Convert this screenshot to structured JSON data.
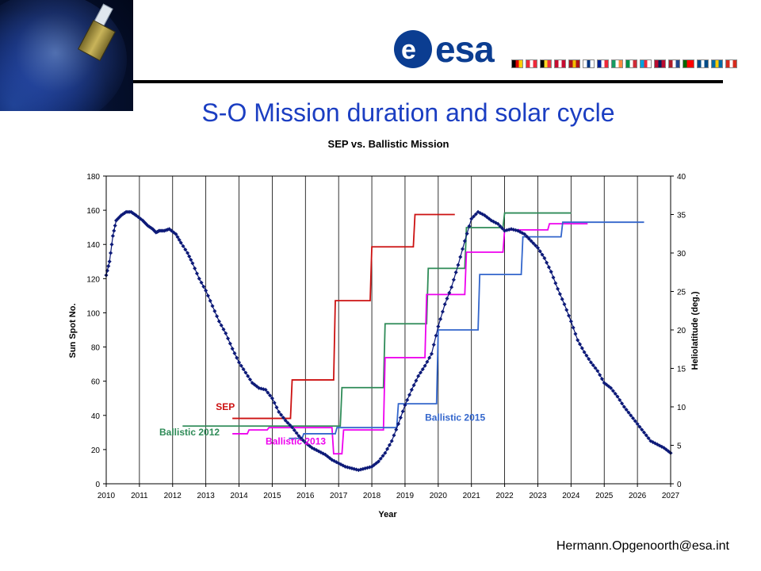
{
  "slide": {
    "title": "S-O Mission duration and solar cycle",
    "logo_text": "esa",
    "footer": "Hermann.Opgenoorth@esa.int",
    "flag_colors": [
      [
        "#000000",
        "#dd0000",
        "#ffce00"
      ],
      [
        "#ed2939",
        "#ffffff",
        "#ed2939"
      ],
      [
        "#000000",
        "#fdda24",
        "#ef3340"
      ],
      [
        "#c60c30",
        "#ffffff",
        "#c60c30"
      ],
      [
        "#aa151b",
        "#f1bf00",
        "#aa151b"
      ],
      [
        "#ffffff",
        "#003580",
        "#ffffff"
      ],
      [
        "#002395",
        "#ffffff",
        "#ed2939"
      ],
      [
        "#169b62",
        "#ffffff",
        "#ff883e"
      ],
      [
        "#009246",
        "#ffffff",
        "#ce2b37"
      ],
      [
        "#00a1de",
        "#ed2939",
        "#ffffff"
      ],
      [
        "#ba0c2f",
        "#00205b",
        "#ba0c2f"
      ],
      [
        "#ae1c28",
        "#ffffff",
        "#21468b"
      ],
      [
        "#006600",
        "#ff0000",
        "#ff0000"
      ],
      [
        "#004b87",
        "#ffffff",
        "#004b87"
      ],
      [
        "#006aa7",
        "#fecc00",
        "#006aa7"
      ],
      [
        "#d52b1e",
        "#ffffff",
        "#d52b1e"
      ]
    ]
  },
  "chart_data": {
    "type": "line",
    "title": "SEP vs. Ballistic Mission",
    "xlabel": "Year",
    "ylabel": "Sun Spot No.",
    "y2label": "Heliolatitude (deg.)",
    "xlim": [
      2010,
      2027
    ],
    "ylim": [
      0,
      180
    ],
    "y2lim": [
      0,
      40
    ],
    "x_ticks": [
      "2010",
      "2011",
      "2012",
      "2013",
      "2014",
      "2015",
      "2016",
      "2017",
      "2018",
      "2019",
      "2020",
      "2021",
      "2022",
      "2023",
      "2024",
      "2025",
      "2026",
      "2027"
    ],
    "y_ticks": [
      "0",
      "20",
      "40",
      "60",
      "80",
      "100",
      "120",
      "140",
      "160",
      "180"
    ],
    "y2_ticks": [
      "0",
      "5",
      "10",
      "15",
      "20",
      "25",
      "30",
      "35",
      "40"
    ],
    "grid": "vertical at each year",
    "sunspot": {
      "color": "#0d1a78",
      "points": [
        [
          2010.0,
          122
        ],
        [
          2010.1,
          130
        ],
        [
          2010.2,
          145
        ],
        [
          2010.3,
          154
        ],
        [
          2010.45,
          157
        ],
        [
          2010.6,
          159
        ],
        [
          2010.75,
          159
        ],
        [
          2010.9,
          157
        ],
        [
          2011.1,
          154
        ],
        [
          2011.25,
          151
        ],
        [
          2011.4,
          149
        ],
        [
          2011.5,
          147
        ],
        [
          2011.6,
          148
        ],
        [
          2011.75,
          148
        ],
        [
          2011.9,
          149
        ],
        [
          2012.1,
          146
        ],
        [
          2012.25,
          141
        ],
        [
          2012.45,
          135
        ],
        [
          2012.6,
          129
        ],
        [
          2012.8,
          120
        ],
        [
          2013.0,
          113
        ],
        [
          2013.2,
          104
        ],
        [
          2013.4,
          95
        ],
        [
          2013.6,
          88
        ],
        [
          2013.8,
          79
        ],
        [
          2014.0,
          71
        ],
        [
          2014.2,
          65
        ],
        [
          2014.4,
          59
        ],
        [
          2014.6,
          56
        ],
        [
          2014.8,
          55
        ],
        [
          2015.0,
          50
        ],
        [
          2015.2,
          42
        ],
        [
          2015.4,
          37
        ],
        [
          2015.6,
          33
        ],
        [
          2015.8,
          28
        ],
        [
          2016.0,
          24
        ],
        [
          2016.2,
          21
        ],
        [
          2016.4,
          19
        ],
        [
          2016.6,
          17
        ],
        [
          2016.8,
          14
        ],
        [
          2017.0,
          12
        ],
        [
          2017.2,
          10
        ],
        [
          2017.4,
          9
        ],
        [
          2017.6,
          8
        ],
        [
          2017.8,
          9
        ],
        [
          2018.0,
          10
        ],
        [
          2018.2,
          13
        ],
        [
          2018.4,
          18
        ],
        [
          2018.6,
          25
        ],
        [
          2018.8,
          35
        ],
        [
          2019.0,
          46
        ],
        [
          2019.2,
          55
        ],
        [
          2019.4,
          63
        ],
        [
          2019.6,
          69
        ],
        [
          2019.8,
          76
        ],
        [
          2020.0,
          92
        ],
        [
          2020.2,
          105
        ],
        [
          2020.4,
          115
        ],
        [
          2020.6,
          128
        ],
        [
          2020.8,
          142
        ],
        [
          2021.0,
          155
        ],
        [
          2021.2,
          159
        ],
        [
          2021.4,
          157
        ],
        [
          2021.6,
          154
        ],
        [
          2021.8,
          152
        ],
        [
          2022.0,
          148
        ],
        [
          2022.2,
          149
        ],
        [
          2022.4,
          148
        ],
        [
          2022.6,
          146
        ],
        [
          2022.8,
          142
        ],
        [
          2023.0,
          138
        ],
        [
          2023.2,
          132
        ],
        [
          2023.4,
          124
        ],
        [
          2023.6,
          114
        ],
        [
          2023.8,
          105
        ],
        [
          2024.0,
          95
        ],
        [
          2024.2,
          84
        ],
        [
          2024.4,
          77
        ],
        [
          2024.6,
          71
        ],
        [
          2024.8,
          66
        ],
        [
          2025.0,
          59
        ],
        [
          2025.2,
          56
        ],
        [
          2025.4,
          51
        ],
        [
          2025.6,
          45
        ],
        [
          2025.8,
          40
        ],
        [
          2026.0,
          35
        ],
        [
          2026.2,
          30
        ],
        [
          2026.4,
          25
        ],
        [
          2026.6,
          23
        ],
        [
          2026.8,
          21
        ],
        [
          2027.0,
          18
        ]
      ]
    },
    "series": [
      {
        "name": "SEP",
        "color": "#cc1111",
        "axis": "right",
        "points": [
          [
            2013.8,
            8.5
          ],
          [
            2015.55,
            8.5
          ],
          [
            2015.6,
            13.5
          ],
          [
            2016.85,
            13.5
          ],
          [
            2016.9,
            23.8
          ],
          [
            2017.95,
            23.8
          ],
          [
            2018.0,
            30.8
          ],
          [
            2019.25,
            30.8
          ],
          [
            2019.3,
            35
          ],
          [
            2020.5,
            35
          ]
        ]
      },
      {
        "name": "Ballistic 2012",
        "color": "#2e8b57",
        "axis": "right",
        "points": [
          [
            2012.3,
            7.5
          ],
          [
            2017.05,
            7.5
          ],
          [
            2017.1,
            12.5
          ],
          [
            2018.35,
            12.5
          ],
          [
            2018.4,
            20.8
          ],
          [
            2019.65,
            20.8
          ],
          [
            2019.7,
            28
          ],
          [
            2020.8,
            28
          ],
          [
            2020.85,
            33.3
          ],
          [
            2021.95,
            33.3
          ],
          [
            2022.0,
            35.2
          ],
          [
            2024.0,
            35.2
          ]
        ]
      },
      {
        "name": "Ballistic 2013",
        "color": "#ee00ee",
        "axis": "right",
        "points": [
          [
            2013.8,
            6.5
          ],
          [
            2014.25,
            6.5
          ],
          [
            2014.3,
            7.0
          ],
          [
            2014.85,
            7.0
          ],
          [
            2014.9,
            7.3
          ],
          [
            2016.8,
            7.3
          ],
          [
            2016.85,
            3.9
          ],
          [
            2017.1,
            3.9
          ],
          [
            2017.15,
            7.0
          ],
          [
            2018.35,
            7.0
          ],
          [
            2018.4,
            16.4
          ],
          [
            2019.6,
            16.4
          ],
          [
            2019.65,
            24.6
          ],
          [
            2020.8,
            24.6
          ],
          [
            2020.85,
            30.1
          ],
          [
            2021.95,
            30.1
          ],
          [
            2022.0,
            33
          ],
          [
            2023.3,
            33
          ],
          [
            2023.35,
            33.8
          ],
          [
            2024.5,
            33.8
          ]
        ]
      },
      {
        "name": "Ballistic 2015",
        "color": "#3366cc",
        "axis": "right",
        "points": [
          [
            2015.5,
            5.9
          ],
          [
            2015.9,
            5.9
          ],
          [
            2015.95,
            6.5
          ],
          [
            2016.9,
            6.5
          ],
          [
            2016.95,
            7.3
          ],
          [
            2018.75,
            7.3
          ],
          [
            2018.8,
            10.4
          ],
          [
            2019.95,
            10.4
          ],
          [
            2020.0,
            20.0
          ],
          [
            2021.2,
            20.0
          ],
          [
            2021.25,
            27.2
          ],
          [
            2022.5,
            27.2
          ],
          [
            2022.55,
            32.1
          ],
          [
            2023.7,
            32.1
          ],
          [
            2023.75,
            34
          ],
          [
            2026.2,
            34
          ]
        ]
      }
    ],
    "labels": [
      {
        "text": "SEP",
        "series": "SEP",
        "x": 2013.3,
        "y": 9.6
      },
      {
        "text": "Ballistic 2012",
        "series": "Ballistic 2012",
        "x": 2011.6,
        "y": 6.3
      },
      {
        "text": "Ballistic 2013",
        "series": "Ballistic 2013",
        "x": 2014.8,
        "y": 5.1
      },
      {
        "text": "Ballistic 2015",
        "series": "Ballistic 2015",
        "x": 2019.6,
        "y": 8.2
      }
    ]
  }
}
